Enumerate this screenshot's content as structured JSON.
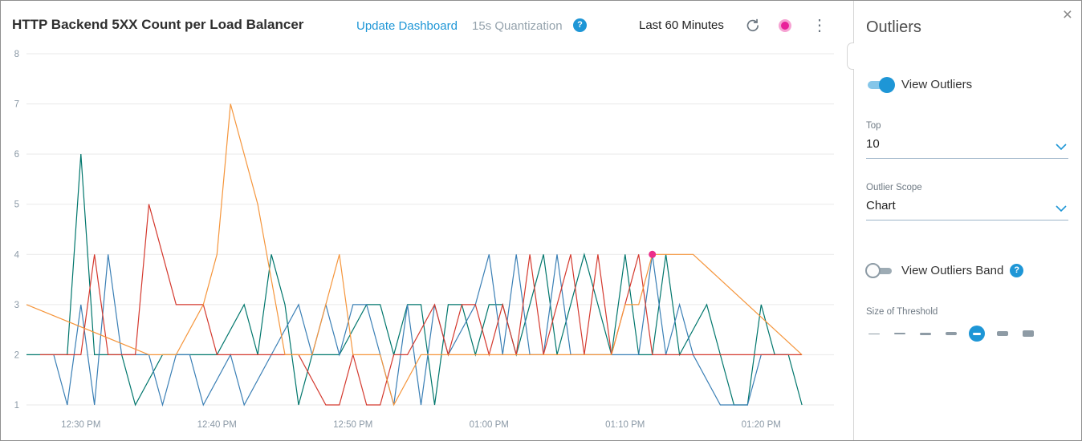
{
  "header": {
    "title": "HTTP Backend 5XX Count per Load Balancer",
    "update_dashboard_label": "Update Dashboard",
    "quantization_label": "15s Quantization",
    "time_range_label": "Last 60 Minutes"
  },
  "icons": {
    "help": "?",
    "kebab": "⋮",
    "close": "×"
  },
  "panel": {
    "title": "Outliers",
    "view_outliers_label": "View Outliers",
    "view_outliers_on": true,
    "top": {
      "label": "Top",
      "value": "10"
    },
    "scope": {
      "label": "Outlier Scope",
      "value": "Chart"
    },
    "band_label": "View Outliers Band",
    "band_on": false,
    "threshold": {
      "label": "Size of Threshold",
      "sizes": [
        1,
        2,
        3,
        4,
        5,
        6,
        8
      ],
      "selected_index": 4
    }
  },
  "colors": {
    "accent_blue": "#1e96d6",
    "marker_pink": "#ec2e8a",
    "grid": "#e9e9e9",
    "tick_text": "#8b99a6"
  },
  "chart_data": {
    "type": "line",
    "title": "HTTP Backend 5XX Count per Load Balancer",
    "x_unit": "minutes since 12:26 PM",
    "xlim": [
      0,
      59
    ],
    "ylim": [
      1,
      8
    ],
    "y_ticks": [
      1,
      2,
      3,
      4,
      5,
      6,
      7,
      8
    ],
    "x_ticks": [
      {
        "x": 4,
        "label": "12:30 PM"
      },
      {
        "x": 14,
        "label": "12:40 PM"
      },
      {
        "x": 24,
        "label": "12:50 PM"
      },
      {
        "x": 34,
        "label": "01:00 PM"
      },
      {
        "x": 44,
        "label": "01:10 PM"
      },
      {
        "x": 54,
        "label": "01:20 PM"
      }
    ],
    "grid": "horizontal",
    "legend": "none",
    "series": [
      {
        "name": "series-1-teal",
        "color": "#00766c",
        "points": [
          [
            0,
            2
          ],
          [
            1,
            2
          ],
          [
            3,
            2
          ],
          [
            4,
            6
          ],
          [
            5,
            2
          ],
          [
            7,
            2
          ],
          [
            8,
            1
          ],
          [
            10,
            2
          ],
          [
            12,
            2
          ],
          [
            14,
            2
          ],
          [
            16,
            3
          ],
          [
            17,
            2
          ],
          [
            18,
            4
          ],
          [
            19,
            3
          ],
          [
            20,
            1
          ],
          [
            21,
            2
          ],
          [
            22,
            2
          ],
          [
            23,
            2
          ],
          [
            25,
            3
          ],
          [
            26,
            3
          ],
          [
            27,
            2
          ],
          [
            28,
            3
          ],
          [
            29,
            3
          ],
          [
            30,
            1
          ],
          [
            31,
            3
          ],
          [
            32,
            3
          ],
          [
            33,
            2
          ],
          [
            34,
            3
          ],
          [
            35,
            3
          ],
          [
            36,
            2
          ],
          [
            38,
            4
          ],
          [
            39,
            2
          ],
          [
            41,
            4
          ],
          [
            42,
            3
          ],
          [
            43,
            2
          ],
          [
            44,
            4
          ],
          [
            45,
            2
          ],
          [
            46,
            2
          ],
          [
            47,
            4
          ],
          [
            48,
            2
          ],
          [
            50,
            3
          ],
          [
            51,
            2
          ],
          [
            52,
            1
          ],
          [
            53,
            1
          ],
          [
            54,
            3
          ],
          [
            55,
            2
          ],
          [
            56,
            2
          ],
          [
            57,
            1
          ]
        ]
      },
      {
        "name": "series-2-blue",
        "color": "#3a7fb5",
        "points": [
          [
            2,
            2
          ],
          [
            3,
            1
          ],
          [
            4,
            3
          ],
          [
            5,
            1
          ],
          [
            6,
            4
          ],
          [
            7,
            2
          ],
          [
            9,
            2
          ],
          [
            10,
            1
          ],
          [
            11,
            2
          ],
          [
            12,
            2
          ],
          [
            13,
            1
          ],
          [
            15,
            2
          ],
          [
            16,
            1
          ],
          [
            18,
            2
          ],
          [
            20,
            3
          ],
          [
            21,
            2
          ],
          [
            22,
            3
          ],
          [
            23,
            2
          ],
          [
            24,
            3
          ],
          [
            25,
            3
          ],
          [
            26,
            2
          ],
          [
            27,
            1
          ],
          [
            28,
            3
          ],
          [
            29,
            1
          ],
          [
            30,
            3
          ],
          [
            31,
            2
          ],
          [
            33,
            3
          ],
          [
            34,
            4
          ],
          [
            35,
            2
          ],
          [
            36,
            4
          ],
          [
            37,
            2
          ],
          [
            38,
            2
          ],
          [
            39,
            4
          ],
          [
            40,
            2
          ],
          [
            42,
            2
          ],
          [
            44,
            2
          ],
          [
            45,
            2
          ],
          [
            46,
            4
          ],
          [
            47,
            2
          ],
          [
            48,
            3
          ],
          [
            49,
            2
          ],
          [
            51,
            1
          ],
          [
            53,
            1
          ],
          [
            54,
            2
          ],
          [
            55,
            2
          ],
          [
            56,
            2
          ]
        ]
      },
      {
        "name": "series-3-red",
        "color": "#d4392e",
        "points": [
          [
            1,
            2
          ],
          [
            2,
            2
          ],
          [
            4,
            2
          ],
          [
            5,
            4
          ],
          [
            6,
            2
          ],
          [
            8,
            2
          ],
          [
            9,
            5
          ],
          [
            10,
            4
          ],
          [
            11,
            3
          ],
          [
            13,
            3
          ],
          [
            14,
            2
          ],
          [
            16,
            2
          ],
          [
            18,
            2
          ],
          [
            20,
            2
          ],
          [
            22,
            1
          ],
          [
            23,
            1
          ],
          [
            24,
            2
          ],
          [
            25,
            1
          ],
          [
            26,
            1
          ],
          [
            27,
            2
          ],
          [
            28,
            2
          ],
          [
            30,
            3
          ],
          [
            31,
            2
          ],
          [
            32,
            3
          ],
          [
            33,
            3
          ],
          [
            34,
            2
          ],
          [
            35,
            3
          ],
          [
            36,
            2
          ],
          [
            37,
            4
          ],
          [
            38,
            2
          ],
          [
            40,
            4
          ],
          [
            41,
            2
          ],
          [
            42,
            4
          ],
          [
            43,
            2
          ],
          [
            45,
            4
          ],
          [
            46,
            2
          ],
          [
            47,
            2
          ],
          [
            49,
            2
          ],
          [
            51,
            2
          ],
          [
            53,
            2
          ],
          [
            55,
            2
          ],
          [
            57,
            2
          ]
        ]
      },
      {
        "name": "series-4-orange",
        "color": "#f5953b",
        "points": [
          [
            0,
            3
          ],
          [
            9,
            2
          ],
          [
            11,
            2
          ],
          [
            13,
            3
          ],
          [
            14,
            4
          ],
          [
            15,
            7
          ],
          [
            17,
            5
          ],
          [
            19,
            2
          ],
          [
            21,
            2
          ],
          [
            22,
            3
          ],
          [
            23,
            4
          ],
          [
            24,
            2
          ],
          [
            26,
            2
          ],
          [
            27,
            1
          ],
          [
            29,
            2
          ],
          [
            43,
            2
          ],
          [
            44,
            3
          ],
          [
            45,
            3
          ],
          [
            46,
            4
          ],
          [
            49,
            4
          ],
          [
            57,
            2
          ]
        ]
      }
    ],
    "marker": {
      "x": 46,
      "y": 4,
      "color": "#ec2e8a",
      "name": "outlier-highlight-dot"
    }
  }
}
